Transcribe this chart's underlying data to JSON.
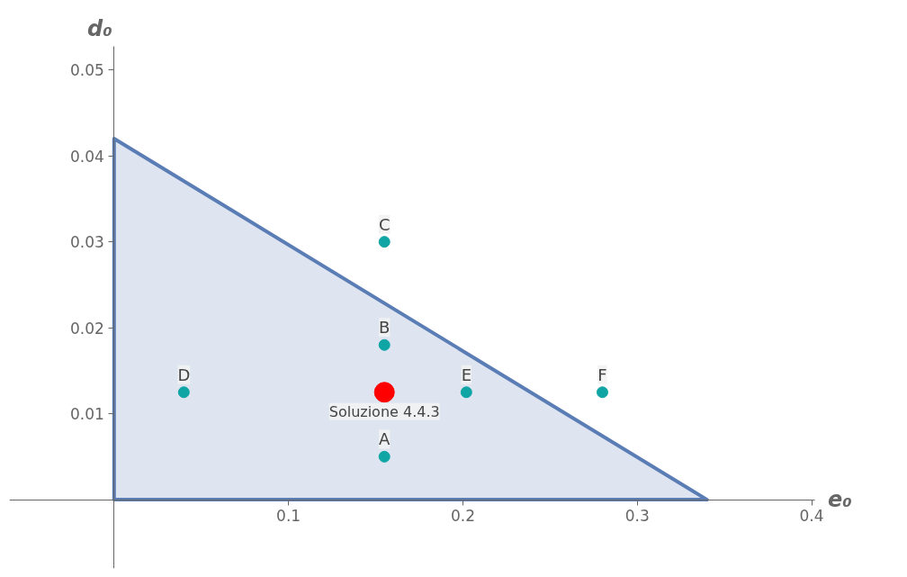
{
  "chart_data": {
    "type": "scatter",
    "xlabel": "e₀",
    "ylabel": "d₀",
    "series": [
      {
        "type": "area",
        "color": "#5a7db5",
        "x": [
          0,
          0.34
        ],
        "values": [
          0.042,
          0
        ]
      },
      {
        "color": "#10a5a5",
        "x": [
          0.155,
          0.155,
          0.155,
          0.04,
          0.202,
          0.28
        ],
        "values": [
          0.005,
          0.018,
          0.03,
          0.0125,
          0.0125,
          0.0125
        ]
      },
      {
        "name": "Soluzione 4.4.3",
        "color": "#ff0000",
        "x": [
          0.155
        ],
        "values": [
          0.0125
        ]
      }
    ],
    "annotations": [
      {
        "text": "A",
        "x": 0.155,
        "y": 0.005
      },
      {
        "text": "B",
        "x": 0.155,
        "y": 0.018
      },
      {
        "text": "C",
        "x": 0.155,
        "y": 0.03
      },
      {
        "text": "D",
        "x": 0.04,
        "y": 0.0125
      },
      {
        "text": "E",
        "x": 0.202,
        "y": 0.0125
      },
      {
        "text": "F",
        "x": 0.28,
        "y": 0.0125
      }
    ],
    "xlim": [
      -0.06,
      0.402
    ],
    "ylim": [
      -0.008,
      0.0527
    ],
    "xticks": [
      0.1,
      0.2,
      0.3,
      0.4
    ],
    "yticks": [
      0.01,
      0.02,
      0.03,
      0.04,
      0.05
    ],
    "grid": false
  }
}
